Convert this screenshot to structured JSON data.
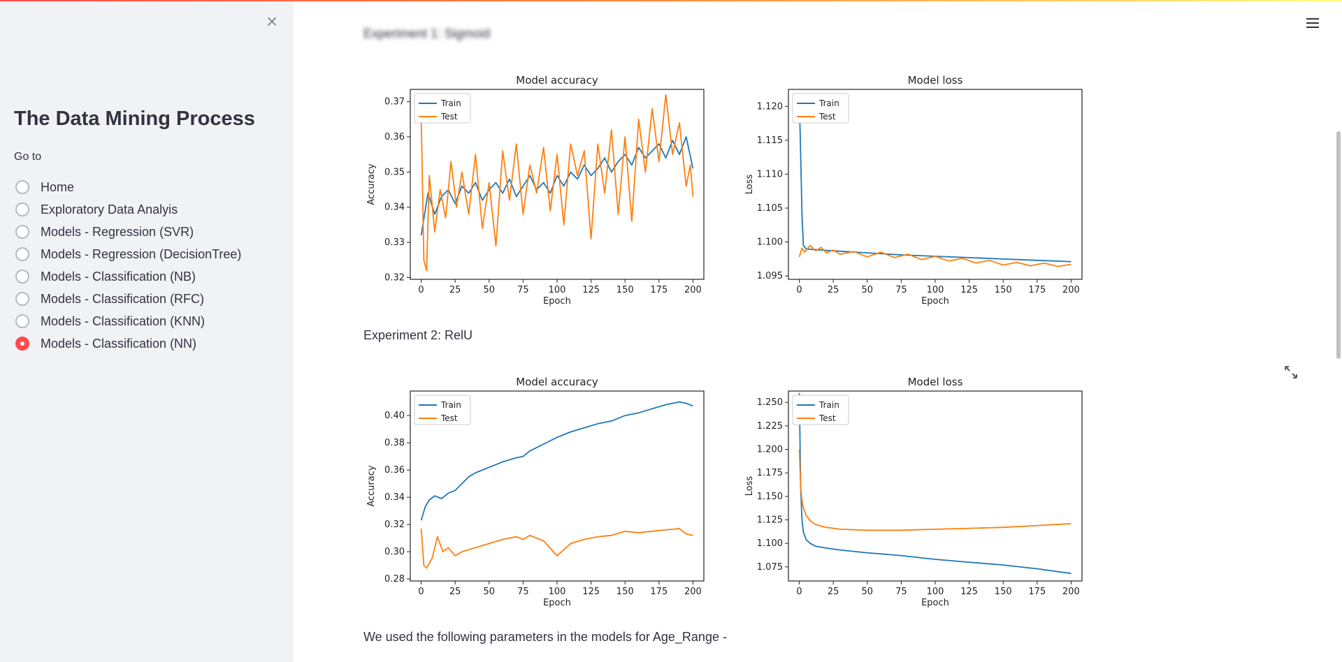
{
  "sidebar": {
    "close_glyph": "×",
    "title": "The Data Mining Process",
    "goto_label": "Go to",
    "options": [
      {
        "label": "Home",
        "selected": false
      },
      {
        "label": "Exploratory Data Analyis",
        "selected": false
      },
      {
        "label": "Models - Regression (SVR)",
        "selected": false
      },
      {
        "label": "Models - Regression (DecisionTree)",
        "selected": false
      },
      {
        "label": "Models - Classification (NB)",
        "selected": false
      },
      {
        "label": "Models - Classification (RFC)",
        "selected": false
      },
      {
        "label": "Models - Classification (KNN)",
        "selected": false
      },
      {
        "label": "Models - Classification (NN)",
        "selected": true
      }
    ]
  },
  "main": {
    "experiment1_heading": "Experiment 1: Sigmoid",
    "experiment2_heading": "Experiment 2: RelU",
    "footer_text": "We used the following parameters in the models for Age_Range -"
  },
  "colors": {
    "accent": "#ff4b4b",
    "train": "#1f77b4",
    "test": "#ff7f0e",
    "sidebar_bg": "#f0f2f6"
  },
  "icons": {
    "menu": "hamburger-menu-icon",
    "expand": "fullscreen-expand-icon",
    "close": "close-icon"
  },
  "chart_data": [
    {
      "id": "exp1-accuracy",
      "type": "line",
      "title": "Model accuracy",
      "xlabel": "Epoch",
      "ylabel": "Accuracy",
      "xlim": [
        -8,
        208
      ],
      "ylim": [
        0.3195,
        0.3735
      ],
      "xticks": [
        0,
        25,
        50,
        75,
        100,
        125,
        150,
        175,
        200
      ],
      "yticks": [
        0.32,
        0.33,
        0.34,
        0.35,
        0.36,
        0.37
      ],
      "ytick_labels": [
        "0.32",
        "0.33",
        "0.34",
        "0.35",
        "0.36",
        "0.37"
      ],
      "legend": "upper-left",
      "series": [
        {
          "name": "Train",
          "x": [
            0,
            5,
            10,
            15,
            20,
            25,
            30,
            35,
            40,
            45,
            50,
            55,
            60,
            65,
            70,
            75,
            80,
            85,
            90,
            95,
            100,
            105,
            110,
            115,
            120,
            125,
            130,
            135,
            140,
            145,
            150,
            155,
            160,
            165,
            170,
            175,
            180,
            185,
            190,
            195,
            200
          ],
          "values": [
            0.332,
            0.344,
            0.338,
            0.343,
            0.345,
            0.341,
            0.346,
            0.344,
            0.347,
            0.342,
            0.345,
            0.347,
            0.344,
            0.348,
            0.343,
            0.346,
            0.349,
            0.345,
            0.347,
            0.344,
            0.349,
            0.346,
            0.35,
            0.348,
            0.352,
            0.349,
            0.351,
            0.354,
            0.35,
            0.353,
            0.355,
            0.352,
            0.357,
            0.354,
            0.356,
            0.358,
            0.354,
            0.359,
            0.355,
            0.36,
            0.351
          ]
        },
        {
          "name": "Test",
          "x": [
            0,
            2,
            4,
            6,
            10,
            14,
            18,
            22,
            26,
            30,
            35,
            40,
            45,
            50,
            55,
            60,
            65,
            70,
            75,
            80,
            85,
            90,
            95,
            100,
            105,
            110,
            115,
            120,
            125,
            130,
            135,
            140,
            145,
            150,
            155,
            160,
            165,
            170,
            175,
            180,
            185,
            190,
            195,
            198,
            200
          ],
          "values": [
            0.366,
            0.325,
            0.322,
            0.349,
            0.333,
            0.345,
            0.337,
            0.353,
            0.34,
            0.35,
            0.338,
            0.355,
            0.334,
            0.347,
            0.329,
            0.356,
            0.342,
            0.358,
            0.338,
            0.352,
            0.344,
            0.357,
            0.339,
            0.355,
            0.335,
            0.358,
            0.349,
            0.356,
            0.331,
            0.358,
            0.344,
            0.362,
            0.338,
            0.36,
            0.336,
            0.365,
            0.35,
            0.368,
            0.353,
            0.372,
            0.355,
            0.364,
            0.346,
            0.352,
            0.343
          ]
        }
      ]
    },
    {
      "id": "exp1-loss",
      "type": "line",
      "title": "Model loss",
      "xlabel": "Epoch",
      "ylabel": "Loss",
      "xlim": [
        -8,
        208
      ],
      "ylim": [
        1.0945,
        1.1225
      ],
      "xticks": [
        0,
        25,
        50,
        75,
        100,
        125,
        150,
        175,
        200
      ],
      "yticks": [
        1.095,
        1.1,
        1.105,
        1.11,
        1.115,
        1.12
      ],
      "ytick_labels": [
        "1.095",
        "1.100",
        "1.105",
        "1.110",
        "1.115",
        "1.120"
      ],
      "legend": "upper-left",
      "series": [
        {
          "name": "Train",
          "x": [
            0,
            1,
            2,
            3,
            5,
            10,
            25,
            50,
            75,
            100,
            125,
            150,
            175,
            200
          ],
          "values": [
            1.121,
            1.113,
            1.104,
            1.0995,
            1.099,
            1.0989,
            1.0987,
            1.0984,
            1.0981,
            1.0979,
            1.0977,
            1.0975,
            1.0973,
            1.0971
          ]
        },
        {
          "name": "Test",
          "x": [
            0,
            2,
            4,
            8,
            12,
            16,
            20,
            25,
            30,
            40,
            50,
            60,
            70,
            80,
            90,
            100,
            110,
            120,
            130,
            140,
            150,
            160,
            170,
            180,
            190,
            200
          ],
          "values": [
            1.0978,
            1.0991,
            1.0985,
            1.0995,
            1.0987,
            1.0992,
            1.0984,
            1.0988,
            1.0982,
            1.0986,
            1.0978,
            1.0985,
            1.0977,
            1.0982,
            1.0974,
            1.0979,
            1.0972,
            1.0976,
            1.0969,
            1.0973,
            1.0966,
            1.097,
            1.0965,
            1.0969,
            1.0964,
            1.0967
          ]
        }
      ]
    },
    {
      "id": "exp2-accuracy",
      "type": "line",
      "title": "Model accuracy",
      "xlabel": "Epoch",
      "ylabel": "Accuracy",
      "xlim": [
        -8,
        208
      ],
      "ylim": [
        0.2785,
        0.418
      ],
      "xticks": [
        0,
        25,
        50,
        75,
        100,
        125,
        150,
        175,
        200
      ],
      "yticks": [
        0.28,
        0.3,
        0.32,
        0.34,
        0.36,
        0.38,
        0.4
      ],
      "ytick_labels": [
        "0.28",
        "0.30",
        "0.32",
        "0.34",
        "0.36",
        "0.38",
        "0.40"
      ],
      "legend": "upper-left",
      "series": [
        {
          "name": "Train",
          "x": [
            0,
            3,
            6,
            10,
            15,
            20,
            25,
            30,
            35,
            40,
            50,
            60,
            70,
            75,
            80,
            90,
            100,
            110,
            120,
            130,
            140,
            150,
            160,
            170,
            180,
            190,
            195,
            200
          ],
          "values": [
            0.323,
            0.333,
            0.338,
            0.341,
            0.339,
            0.343,
            0.345,
            0.35,
            0.355,
            0.358,
            0.362,
            0.366,
            0.369,
            0.37,
            0.374,
            0.379,
            0.384,
            0.388,
            0.391,
            0.394,
            0.396,
            0.4,
            0.402,
            0.405,
            0.408,
            0.41,
            0.409,
            0.407
          ]
        },
        {
          "name": "Test",
          "x": [
            0,
            2,
            4,
            8,
            12,
            16,
            20,
            25,
            30,
            40,
            50,
            60,
            70,
            75,
            80,
            90,
            100,
            110,
            120,
            130,
            140,
            150,
            160,
            170,
            180,
            190,
            195,
            200
          ],
          "values": [
            0.317,
            0.29,
            0.288,
            0.295,
            0.311,
            0.3,
            0.303,
            0.297,
            0.3,
            0.303,
            0.306,
            0.309,
            0.311,
            0.309,
            0.312,
            0.308,
            0.297,
            0.306,
            0.309,
            0.311,
            0.312,
            0.315,
            0.314,
            0.315,
            0.316,
            0.317,
            0.313,
            0.312
          ]
        }
      ]
    },
    {
      "id": "exp2-loss",
      "type": "line",
      "title": "Model loss",
      "xlabel": "Epoch",
      "ylabel": "Loss",
      "xlim": [
        -8,
        208
      ],
      "ylim": [
        1.06,
        1.262
      ],
      "xticks": [
        0,
        25,
        50,
        75,
        100,
        125,
        150,
        175,
        200
      ],
      "yticks": [
        1.075,
        1.1,
        1.125,
        1.15,
        1.175,
        1.2,
        1.225,
        1.25
      ],
      "ytick_labels": [
        "1.075",
        "1.100",
        "1.125",
        "1.150",
        "1.175",
        "1.200",
        "1.225",
        "1.250"
      ],
      "legend": "upper-left",
      "series": [
        {
          "name": "Train",
          "x": [
            0,
            1,
            2,
            3,
            5,
            8,
            12,
            20,
            30,
            50,
            75,
            100,
            125,
            150,
            175,
            200
          ],
          "values": [
            1.26,
            1.16,
            1.125,
            1.112,
            1.104,
            1.1,
            1.097,
            1.095,
            1.093,
            1.09,
            1.087,
            1.083,
            1.08,
            1.077,
            1.073,
            1.068
          ]
        },
        {
          "name": "Test",
          "x": [
            0,
            1,
            2,
            3,
            5,
            8,
            12,
            20,
            30,
            50,
            75,
            100,
            125,
            150,
            175,
            200
          ],
          "values": [
            1.2,
            1.16,
            1.145,
            1.138,
            1.13,
            1.124,
            1.12,
            1.117,
            1.115,
            1.114,
            1.114,
            1.115,
            1.116,
            1.117,
            1.119,
            1.121
          ]
        }
      ]
    }
  ]
}
